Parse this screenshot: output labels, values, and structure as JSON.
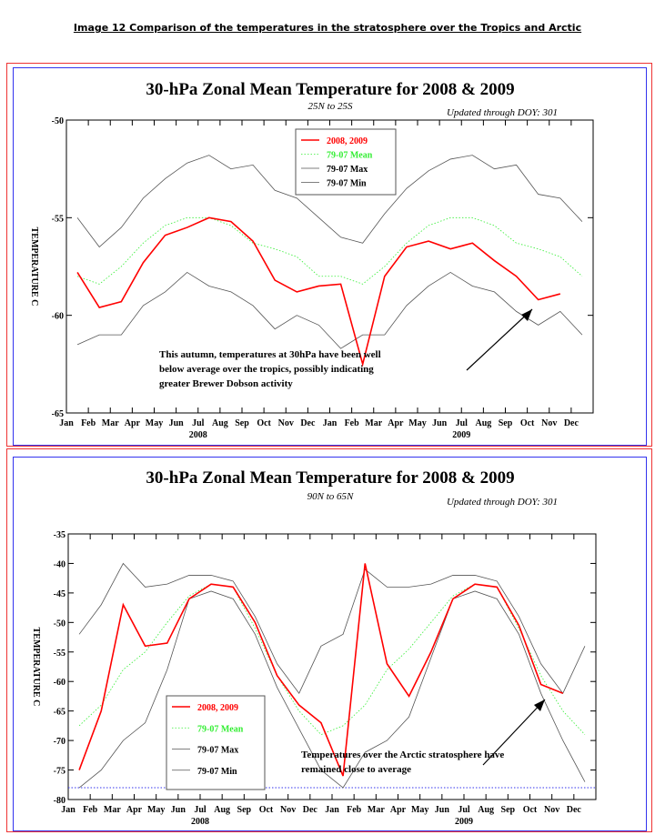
{
  "caption": "Image 12 Comparison of the temperatures in the stratosphere over the Tropics and Arctic",
  "chart_data": [
    {
      "type": "line",
      "title": "30-hPa Zonal Mean Temperature for 2008 & 2009",
      "subtitle": "25N to 25S",
      "updated": "Updated through DOY: 301",
      "ylabel": "TEMPERATURE C",
      "ylim": [
        -65,
        -50
      ],
      "yticks": [
        "-50",
        "-55",
        "-60",
        "-65"
      ],
      "ytick_values": [
        -50,
        -55,
        -60,
        -65
      ],
      "xticks": [
        "Jan",
        "Feb",
        "Mar",
        "Apr",
        "May",
        "Jun",
        "Jul",
        "Aug",
        "Sep",
        "Oct",
        "Nov",
        "Dec",
        "Jan",
        "Feb",
        "Mar",
        "Apr",
        "May",
        "Jun",
        "Jul",
        "Aug",
        "Sep",
        "Oct",
        "Nov",
        "Dec"
      ],
      "years": [
        "2008",
        "2009"
      ],
      "legend_position": "top-center",
      "annotation": [
        "This autumn, temperatures at 30hPa have been well",
        "below average over the tropics, possibly indicating",
        "greater Brewer Dobson activity"
      ],
      "series": [
        {
          "name": "2008, 2009",
          "color": "#ff0000",
          "style": "solid",
          "values": [
            -57.8,
            -59.6,
            -59.3,
            -57.3,
            -55.9,
            -55.5,
            -55.0,
            -55.2,
            -56.2,
            -58.2,
            -58.8,
            -58.5,
            -58.4,
            -62.5,
            -58.0,
            -56.5,
            -56.2,
            -56.6,
            -56.3,
            -57.2,
            -58.0,
            -59.2,
            -58.9
          ]
        },
        {
          "name": "79-07 Mean",
          "color": "#33ee33",
          "style": "dotted",
          "values": [
            -58.0,
            -58.4,
            -57.5,
            -56.3,
            -55.4,
            -55.0,
            -55.0,
            -55.4,
            -56.3,
            -56.6,
            -57.0,
            -58.0,
            -58.0,
            -58.4,
            -57.5,
            -56.3,
            -55.4,
            -55.0,
            -55.0,
            -55.4,
            -56.3,
            -56.6,
            -57.0,
            -58.0
          ]
        },
        {
          "name": "79-07 Max",
          "color": "#555555",
          "style": "solid",
          "values": [
            -55.0,
            -56.5,
            -55.5,
            -54.0,
            -53.0,
            -52.2,
            -51.8,
            -52.5,
            -52.3,
            -53.6,
            -54.0,
            -55.0,
            -56.0,
            -56.3,
            -54.8,
            -53.5,
            -52.6,
            -52.0,
            -51.8,
            -52.5,
            -52.3,
            -53.8,
            -54.0,
            -55.2
          ]
        },
        {
          "name": "79-07 Min",
          "color": "#555555",
          "style": "solid",
          "values": [
            -61.5,
            -61.0,
            -61.0,
            -59.5,
            -58.8,
            -57.8,
            -58.5,
            -58.8,
            -59.5,
            -60.7,
            -60.0,
            -60.5,
            -61.7,
            -61.0,
            -61.0,
            -59.5,
            -58.5,
            -57.8,
            -58.5,
            -58.8,
            -59.8,
            -60.5,
            -59.8,
            -61.0
          ]
        }
      ]
    },
    {
      "type": "line",
      "title": "30-hPa Zonal Mean Temperature for 2008 & 2009",
      "subtitle": "90N to 65N",
      "updated": "Updated through DOY: 301",
      "ylabel": "TEMPERATURE C",
      "ylim": [
        -80,
        -35
      ],
      "yticks": [
        "-35",
        "-40",
        "-45",
        "-50",
        "-55",
        "-60",
        "-65",
        "-70",
        "-75",
        "-80"
      ],
      "ytick_values": [
        -35,
        -40,
        -45,
        -50,
        -55,
        -60,
        -65,
        -70,
        -75,
        -80
      ],
      "xticks": [
        "Jan",
        "Feb",
        "Mar",
        "Apr",
        "May",
        "Jun",
        "Jul",
        "Aug",
        "Sep",
        "Oct",
        "Nov",
        "Dec",
        "Jan",
        "Feb",
        "Mar",
        "Apr",
        "May",
        "Jun",
        "Jul",
        "Aug",
        "Sep",
        "Oct",
        "Nov",
        "Dec"
      ],
      "years": [
        "2008",
        "2009"
      ],
      "legend_position": "bottom-left",
      "reference_line": {
        "value": -78,
        "color": "#3333ee",
        "style": "dotted"
      },
      "annotation": [
        "Temperatures over the Arctic stratosphere have",
        "remained close to average"
      ],
      "series": [
        {
          "name": "2008, 2009",
          "color": "#ff0000",
          "style": "solid",
          "values": [
            -75,
            -65,
            -47,
            -54,
            -53.5,
            -46,
            -43.5,
            -44,
            -50,
            -59,
            -64,
            -67,
            -76,
            -40,
            -57,
            -62.5,
            -55,
            -46,
            -43.5,
            -44,
            -50.5,
            -60.5,
            -62
          ]
        },
        {
          "name": "79-07 Mean",
          "color": "#33ee33",
          "style": "dotted",
          "values": [
            -67.5,
            -64,
            -58,
            -55,
            -50,
            -45.5,
            -43.5,
            -44,
            -51,
            -59,
            -65,
            -69,
            -67.5,
            -64,
            -58,
            -54.5,
            -50,
            -45.5,
            -43.5,
            -44,
            -51,
            -59,
            -65,
            -69
          ]
        },
        {
          "name": "79-07 Max",
          "color": "#555555",
          "style": "solid",
          "values": [
            -52,
            -47,
            -40,
            -44,
            -43.5,
            -42,
            -42,
            -43,
            -49,
            -57,
            -62,
            -54,
            -52,
            -41,
            -44,
            -44,
            -43.5,
            -42,
            -42,
            -43,
            -49,
            -57,
            -62,
            -54
          ]
        },
        {
          "name": "79-07 Min",
          "color": "#555555",
          "style": "solid",
          "values": [
            -78,
            -75,
            -70,
            -67,
            -58,
            -46,
            -44.7,
            -46,
            -52,
            -61,
            -68,
            -75,
            -78,
            -72,
            -70,
            -66,
            -56,
            -46,
            -44.7,
            -46,
            -52,
            -62,
            -70,
            -77
          ]
        }
      ]
    }
  ]
}
